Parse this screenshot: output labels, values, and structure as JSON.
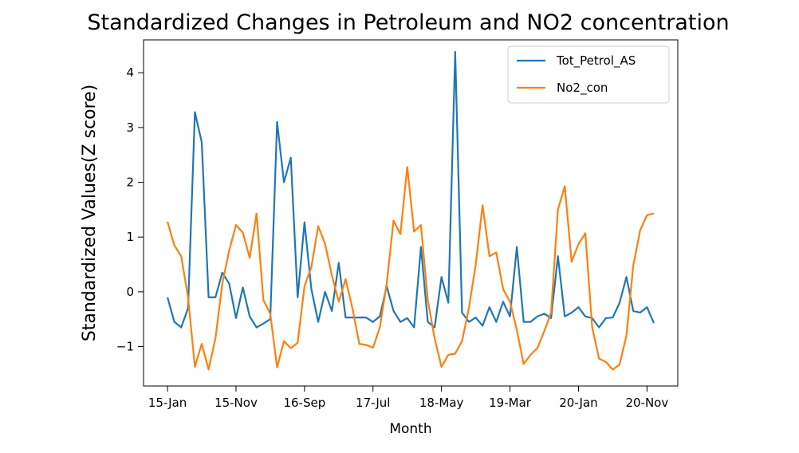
{
  "chart_data": {
    "type": "line",
    "title": "Standardized Changes in Petroleum and NO2 concentration",
    "xlabel": "Month",
    "ylabel": "Standardized Values(Z score)",
    "x_tick_labels": [
      "15-Jan",
      "15-Nov",
      "16-Sep",
      "17-Jul",
      "18-May",
      "19-Mar",
      "20-Jan",
      "20-Nov"
    ],
    "x_tick_indices": [
      0,
      10,
      20,
      30,
      40,
      50,
      60,
      70
    ],
    "xlim": [
      -3.5,
      74.5
    ],
    "y_ticks": [
      -1,
      0,
      1,
      2,
      3,
      4
    ],
    "y_tick_labels": [
      "−1",
      "0",
      "1",
      "2",
      "3",
      "4"
    ],
    "ylim": [
      -1.72,
      4.6
    ],
    "grid": false,
    "legend_position": "upper right",
    "series": [
      {
        "name": "Tot_Petrol_AS",
        "color": "#1f77b4",
        "values": [
          -0.1,
          -0.55,
          -0.65,
          -0.3,
          3.28,
          2.73,
          -0.1,
          -0.1,
          0.35,
          0.15,
          -0.48,
          0.08,
          -0.45,
          -0.65,
          -0.58,
          -0.5,
          3.1,
          2.0,
          2.45,
          -0.1,
          1.27,
          0.05,
          -0.55,
          0.0,
          -0.35,
          0.53,
          -0.47,
          -0.47,
          -0.47,
          -0.47,
          -0.55,
          -0.45,
          0.1,
          -0.35,
          -0.55,
          -0.48,
          -0.65,
          0.82,
          -0.55,
          -0.65,
          0.27,
          -0.2,
          4.38,
          -0.38,
          -0.55,
          -0.47,
          -0.62,
          -0.28,
          -0.55,
          -0.18,
          -0.45,
          0.82,
          -0.55,
          -0.55,
          -0.45,
          -0.4,
          -0.48,
          0.65,
          -0.45,
          -0.38,
          -0.28,
          -0.45,
          -0.48,
          -0.65,
          -0.48,
          -0.47,
          -0.2,
          0.27,
          -0.35,
          -0.38,
          -0.28,
          -0.57
        ]
      },
      {
        "name": "No2_con",
        "color": "#ff7f0e",
        "values": [
          1.28,
          0.85,
          0.65,
          -0.1,
          -1.37,
          -0.95,
          -1.42,
          -0.85,
          0.15,
          0.75,
          1.22,
          1.08,
          0.62,
          1.43,
          -0.15,
          -0.4,
          -1.38,
          -0.9,
          -1.03,
          -0.93,
          0.1,
          0.45,
          1.2,
          0.88,
          0.3,
          -0.18,
          0.23,
          -0.3,
          -0.95,
          -0.97,
          -1.02,
          -0.65,
          0.15,
          1.3,
          1.05,
          2.28,
          1.1,
          1.22,
          -0.15,
          -0.85,
          -1.37,
          -1.15,
          -1.13,
          -0.9,
          -0.3,
          0.5,
          1.58,
          0.65,
          0.72,
          0.05,
          -0.18,
          -0.7,
          -1.32,
          -1.15,
          -1.03,
          -0.72,
          -0.38,
          1.5,
          1.93,
          0.55,
          0.87,
          1.07,
          -0.65,
          -1.22,
          -1.28,
          -1.42,
          -1.33,
          -0.8,
          0.48,
          1.12,
          1.4,
          1.43
        ]
      }
    ]
  }
}
